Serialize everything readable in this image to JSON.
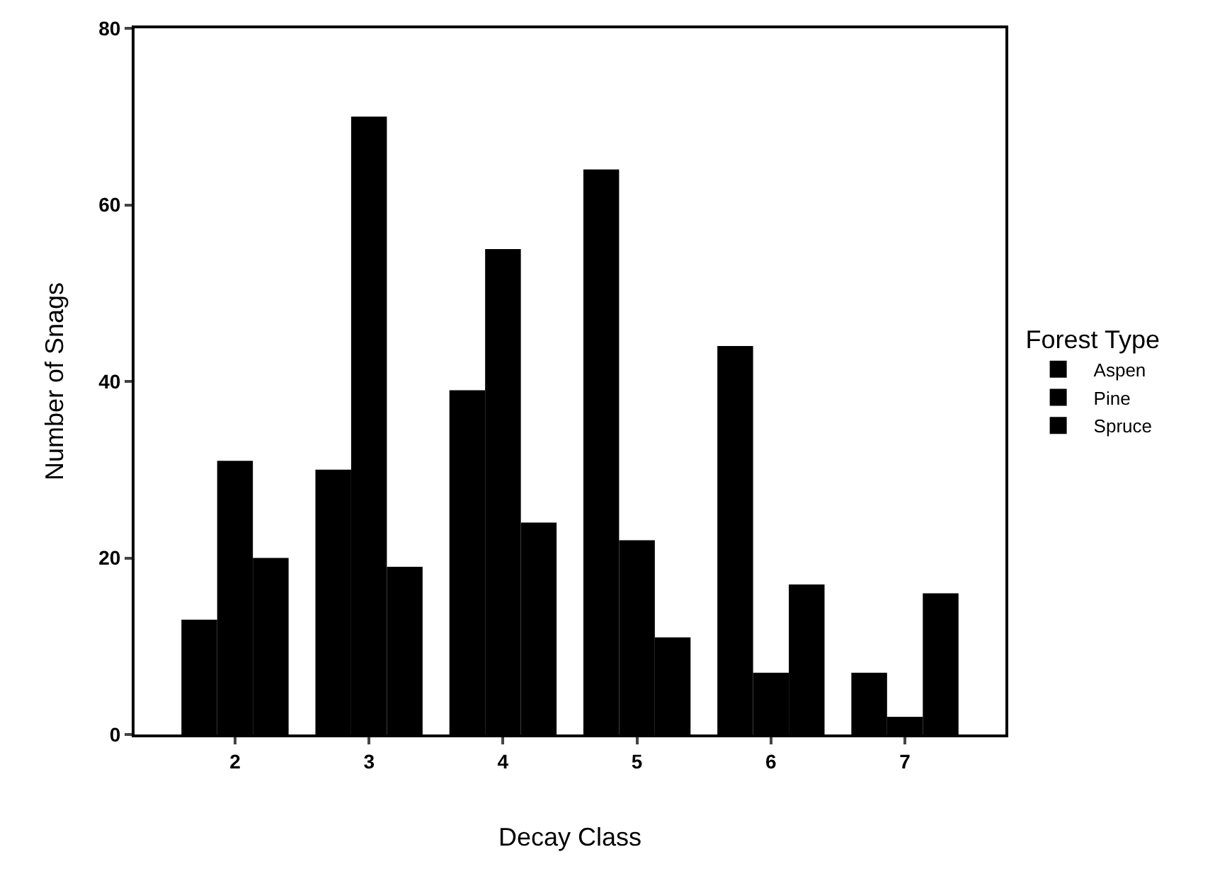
{
  "chart_data": {
    "type": "bar",
    "xlabel": "Decay Class",
    "ylabel": "Number of Snags",
    "legend_title": "Forest Type",
    "categories": [
      "2",
      "3",
      "4",
      "5",
      "6",
      "7"
    ],
    "series": [
      {
        "name": "Aspen",
        "color": "#000000",
        "values": [
          13,
          30,
          39,
          64,
          44,
          7
        ]
      },
      {
        "name": "Pine",
        "color": "#000000",
        "values": [
          31,
          70,
          55,
          22,
          7,
          2
        ]
      },
      {
        "name": "Spruce",
        "color": "#000000",
        "values": [
          20,
          19,
          24,
          11,
          17,
          16
        ]
      }
    ],
    "ylim": [
      0,
      80
    ],
    "yticks": [
      0,
      20,
      40,
      60,
      80
    ],
    "grid": false,
    "legend": "right"
  }
}
